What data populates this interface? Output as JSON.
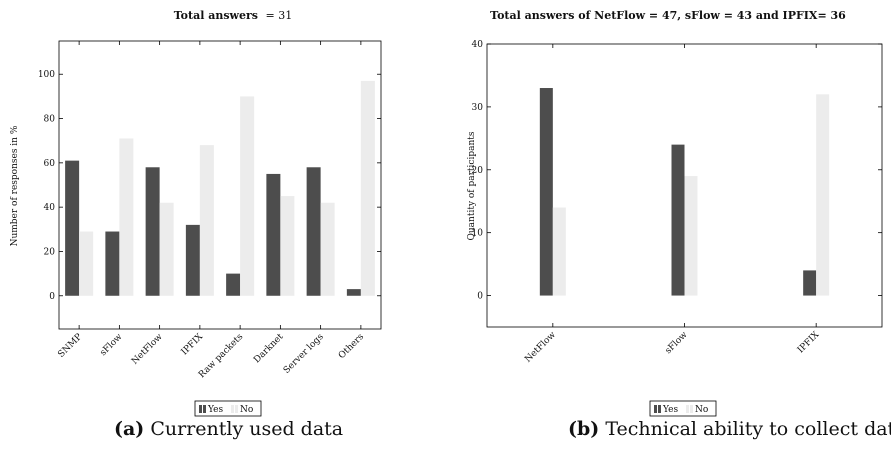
{
  "colors": {
    "yes": "#4d4d4d",
    "no": "#ececec",
    "axis": "#000000"
  },
  "chart_data": [
    {
      "type": "bar",
      "title_prefix": "Total answers",
      "title_suffix": "= 31",
      "ylabel": "Number of responses in %",
      "xlabel": "",
      "categories": [
        "SNMP",
        "sFlow",
        "NetFlow",
        "IPFIX",
        "Raw packets",
        "Darknet",
        "Server logs",
        "Others"
      ],
      "series": [
        {
          "name": "Yes",
          "values": [
            61,
            29,
            58,
            32,
            10,
            55,
            58,
            3
          ]
        },
        {
          "name": "No",
          "values": [
            29,
            71,
            42,
            68,
            90,
            45,
            42,
            97
          ]
        }
      ],
      "ylim": [
        -15,
        115
      ],
      "yticks": [
        0,
        20,
        40,
        60,
        80,
        100
      ],
      "grid": false,
      "legend_position": "bottom-center",
      "caption_label": "(a)",
      "caption_text": "Currently used data"
    },
    {
      "type": "bar",
      "title_text": "Total answers of NetFlow = 47, sFlow = 43 and IPFIX= 36",
      "ylabel": "Quantity of participants",
      "xlabel": "",
      "categories": [
        "NetFlow",
        "sFlow",
        "IPFIX"
      ],
      "series": [
        {
          "name": "Yes",
          "values": [
            33,
            24,
            4
          ]
        },
        {
          "name": "No",
          "values": [
            14,
            19,
            32
          ]
        }
      ],
      "ylim": [
        -5,
        40
      ],
      "yticks": [
        0,
        10,
        20,
        30,
        40
      ],
      "grid": false,
      "legend_position": "bottom-center",
      "caption_label": "(b)",
      "caption_text": "Technical ability to collect data"
    }
  ]
}
